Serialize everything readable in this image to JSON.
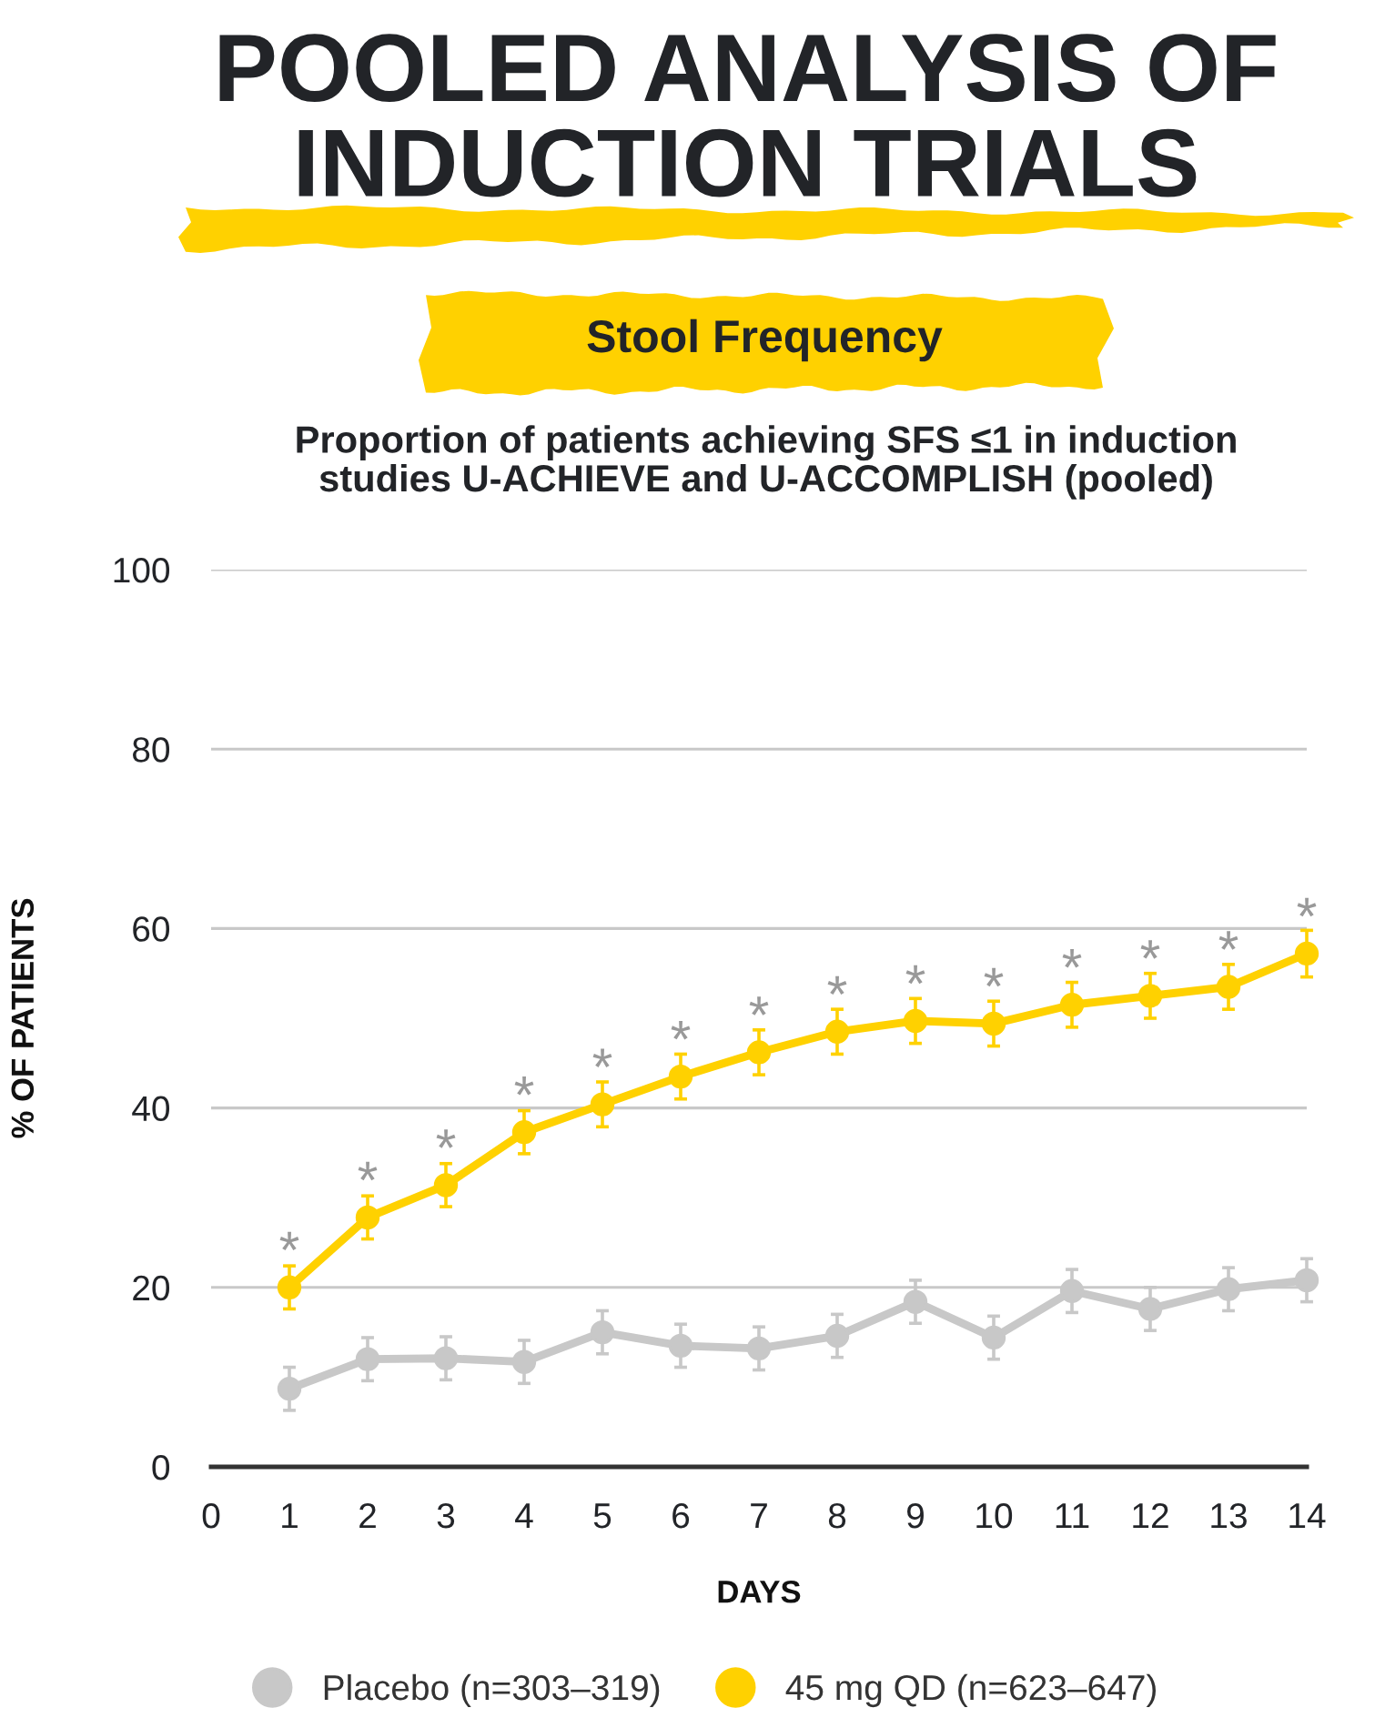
{
  "chart_data": {
    "type": "line",
    "title": "POOLED ANALYSIS OF\nINDUCTION TRIALS",
    "subtitle": "Stool Frequency",
    "xlabel": "DAYS",
    "ylabel": "% OF PATIENTS",
    "x": [
      1,
      2,
      3,
      4,
      5,
      6,
      7,
      8,
      9,
      10,
      11,
      12,
      13,
      14
    ],
    "series": [
      {
        "name": "Placebo (n=303–319)",
        "color": "#c8c8c8",
        "values": [
          8.7,
          12.0,
          12.1,
          11.7,
          15.0,
          13.5,
          13.2,
          14.6,
          18.4,
          14.4,
          19.6,
          17.6,
          19.8,
          20.8
        ],
        "errors": [
          2.4,
          2.4,
          2.4,
          2.4,
          2.4,
          2.4,
          2.4,
          2.4,
          2.4,
          2.4,
          2.4,
          2.4,
          2.4,
          2.4
        ]
      },
      {
        "name": "45 mg QD (n=623–647)",
        "color": "#ffd100",
        "values": [
          20.0,
          27.8,
          31.4,
          37.3,
          40.4,
          43.5,
          46.2,
          48.5,
          49.7,
          49.4,
          51.5,
          52.5,
          53.5,
          57.2
        ],
        "errors": [
          2.4,
          2.4,
          2.4,
          2.4,
          2.5,
          2.5,
          2.5,
          2.5,
          2.5,
          2.5,
          2.5,
          2.5,
          2.5,
          2.6
        ]
      }
    ],
    "xlim": [
      0,
      14
    ],
    "xticks": [
      0,
      1,
      2,
      3,
      4,
      5,
      6,
      7,
      8,
      9,
      10,
      11,
      12,
      13,
      14
    ],
    "ylim": [
      0,
      100
    ],
    "yticks": [
      0,
      20,
      40,
      60,
      80,
      100
    ],
    "grid": "y",
    "legend": "bottom",
    "marker": "circle",
    "line_style": "solid",
    "annotations": [
      "Proportion of patients achieving SFS ≤1 in induction\nstudies U-ACHIEVE and U-ACCOMPLISH (pooled)",
      {
        "text": "*",
        "x": 1,
        "y": 20.0
      },
      {
        "text": "*",
        "x": 2,
        "y": 27.8
      },
      {
        "text": "*",
        "x": 3,
        "y": 31.4
      },
      {
        "text": "*",
        "x": 4,
        "y": 37.3
      },
      {
        "text": "*",
        "x": 5,
        "y": 40.4
      },
      {
        "text": "*",
        "x": 6,
        "y": 43.5
      },
      {
        "text": "*",
        "x": 7,
        "y": 46.2
      },
      {
        "text": "*",
        "x": 8,
        "y": 48.5
      },
      {
        "text": "*",
        "x": 9,
        "y": 49.7
      },
      {
        "text": "*",
        "x": 10,
        "y": 49.4
      },
      {
        "text": "*",
        "x": 11,
        "y": 51.5
      },
      {
        "text": "*",
        "x": 12,
        "y": 52.5
      },
      {
        "text": "*",
        "x": 13,
        "y": 53.5
      },
      {
        "text": "*",
        "x": 14,
        "y": 57.2
      }
    ]
  }
}
